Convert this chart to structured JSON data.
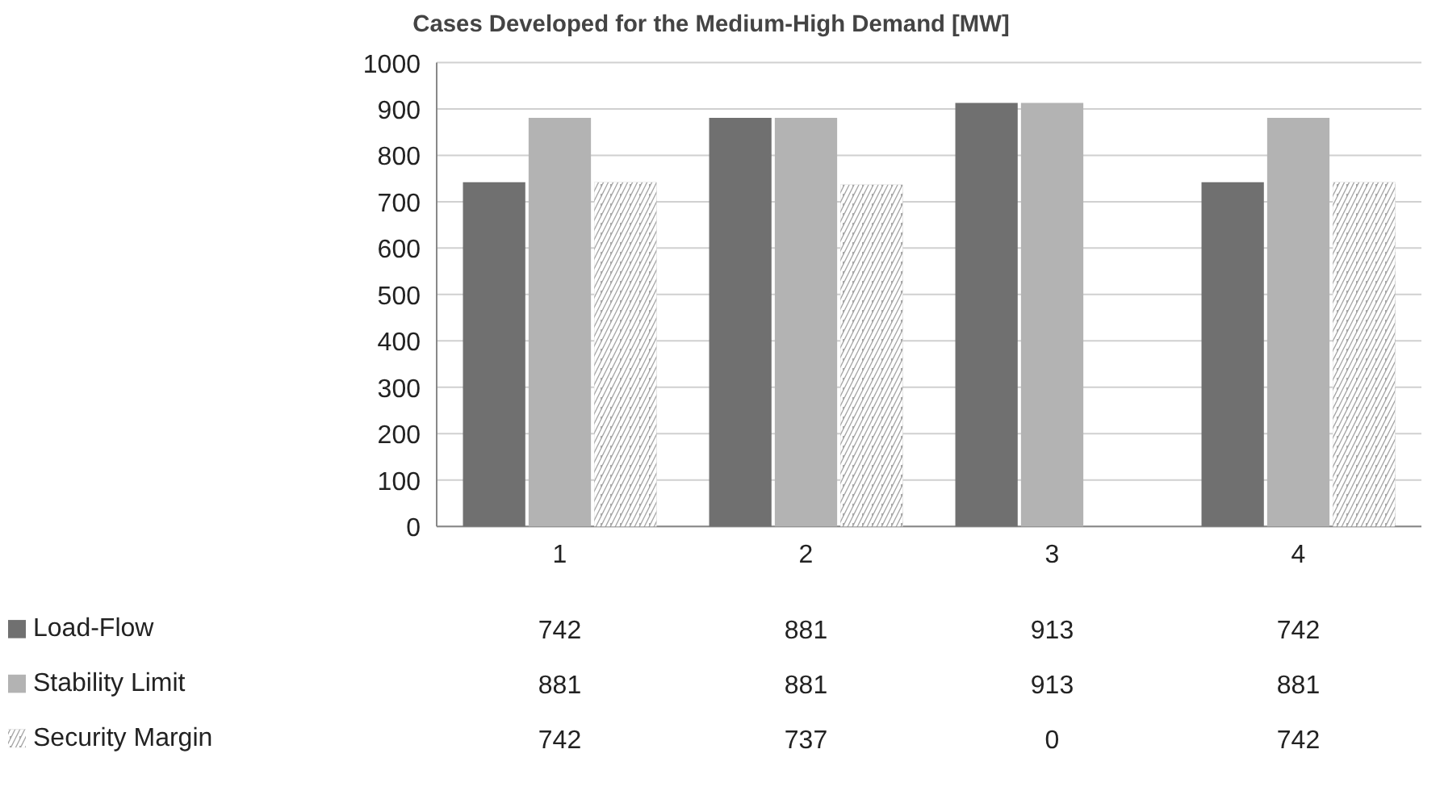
{
  "chart_data": {
    "type": "bar",
    "title": "Cases Developed for the Medium-High Demand [MW]",
    "categories": [
      "1",
      "2",
      "3",
      "4"
    ],
    "series": [
      {
        "name": "Load-Flow",
        "color": "#707070",
        "values": [
          742,
          881,
          913,
          742
        ]
      },
      {
        "name": "Stability Limit",
        "color": "#b3b3b3",
        "values": [
          881,
          881,
          913,
          881
        ]
      },
      {
        "name": "Security Margin",
        "color": "#a6a6a6",
        "values": [
          742,
          737,
          0,
          742
        ]
      }
    ],
    "ylim": [
      0,
      1000
    ],
    "yticks": [
      0,
      100,
      200,
      300,
      400,
      500,
      600,
      700,
      800,
      900,
      1000
    ],
    "grid": "y",
    "data_labels": true,
    "legend": "bottom left"
  }
}
